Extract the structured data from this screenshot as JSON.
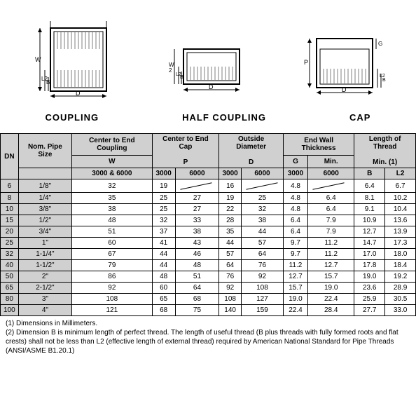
{
  "labels": {
    "coupling": "COUPLING",
    "half": "HALF  COUPLING",
    "cap": "CAP"
  },
  "table": {
    "hdr": {
      "dn": "DN",
      "nom": "Nom. Pipe Size",
      "ce_coup": "Center to End Coupling",
      "ce_cap": "Center to End Cap",
      "od": "Outside Diameter",
      "ewt": "End Wall Thickness",
      "lot": "Length of Thread",
      "w": "W",
      "p": "P",
      "d": "D",
      "g": "G",
      "min": "Min.",
      "min1": "Min. (1)",
      "c36": "3000 & 6000",
      "c3": "3000",
      "c6": "6000",
      "b": "B",
      "l2": "L2"
    },
    "rows": [
      [
        "6",
        "1/8\"",
        "32",
        "19",
        "",
        "16",
        "",
        "4.8",
        "",
        "6.4",
        "6.7"
      ],
      [
        "8",
        "1/4\"",
        "35",
        "25",
        "27",
        "19",
        "25",
        "4.8",
        "6.4",
        "8.1",
        "10.2"
      ],
      [
        "10",
        "3/8\"",
        "38",
        "25",
        "27",
        "22",
        "32",
        "4.8",
        "6.4",
        "9.1",
        "10.4"
      ],
      [
        "15",
        "1/2\"",
        "48",
        "32",
        "33",
        "28",
        "38",
        "6.4",
        "7.9",
        "10.9",
        "13.6"
      ],
      [
        "20",
        "3/4\"",
        "51",
        "37",
        "38",
        "35",
        "44",
        "6.4",
        "7.9",
        "12.7",
        "13.9"
      ],
      [
        "25",
        "1\"",
        "60",
        "41",
        "43",
        "44",
        "57",
        "9.7",
        "11.2",
        "14.7",
        "17.3"
      ],
      [
        "32",
        "1-1/4\"",
        "67",
        "44",
        "46",
        "57",
        "64",
        "9.7",
        "11.2",
        "17.0",
        "18.0"
      ],
      [
        "40",
        "1-1/2\"",
        "79",
        "44",
        "48",
        "64",
        "76",
        "11.2",
        "12.7",
        "17.8",
        "18.4"
      ],
      [
        "50",
        "2\"",
        "86",
        "48",
        "51",
        "76",
        "92",
        "12.7",
        "15.7",
        "19.0",
        "19.2"
      ],
      [
        "65",
        "2-1/2\"",
        "92",
        "60",
        "64",
        "92",
        "108",
        "15.7",
        "19.0",
        "23.6",
        "28.9"
      ],
      [
        "80",
        "3\"",
        "108",
        "65",
        "68",
        "108",
        "127",
        "19.0",
        "22.4",
        "25.9",
        "30.5"
      ],
      [
        "100",
        "4\"",
        "121",
        "68",
        "75",
        "140",
        "159",
        "22.4",
        "28.4",
        "27.7",
        "33.0"
      ]
    ],
    "diag_cells": [
      [
        0,
        4
      ],
      [
        0,
        6
      ],
      [
        0,
        8
      ]
    ]
  },
  "notes": {
    "n1": "(1) Dimensions in Millimeters.",
    "n2": "(2) Dimension B is minimum length of perfect thread.   The length of useful thread (B plus threads with fully formed roots and flat crests) shall not be less than L2 (effective length of external thread) required by American National Standard for Pipe Threads (ANSI/ASME B1.20.1)"
  }
}
